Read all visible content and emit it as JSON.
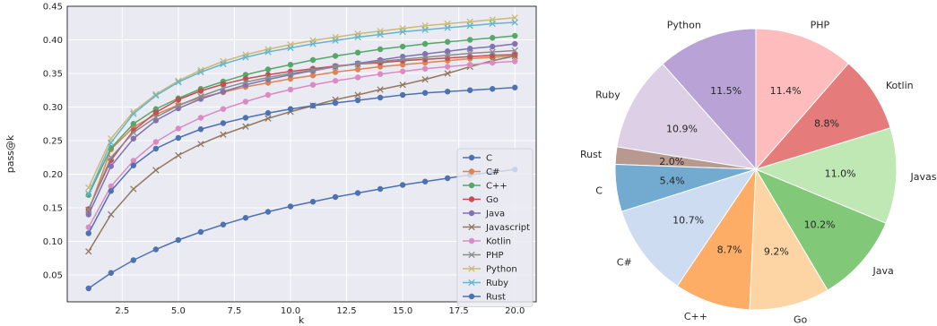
{
  "chart_data": [
    {
      "type": "line",
      "xlabel": "k",
      "ylabel": "pass@k",
      "xlim": [
        0.05,
        20.95
      ],
      "ylim": [
        0.01,
        0.45
      ],
      "xticks": [
        2.5,
        5.0,
        7.5,
        10.0,
        12.5,
        15.0,
        17.5,
        20.0
      ],
      "xtick_labels": [
        "2.5",
        "5.0",
        "7.5",
        "10.0",
        "12.5",
        "15.0",
        "17.5",
        "20.0"
      ],
      "yticks": [
        0.05,
        0.1,
        0.15,
        0.2,
        0.25,
        0.3,
        0.35,
        0.4,
        0.45
      ],
      "ytick_labels": [
        "0.05",
        "0.10",
        "0.15",
        "0.20",
        "0.25",
        "0.30",
        "0.35",
        "0.40",
        "0.45"
      ],
      "grid": true,
      "legend_position": "lower-right",
      "x": [
        1,
        2,
        3,
        4,
        5,
        6,
        7,
        8,
        9,
        10,
        11,
        12,
        13,
        14,
        15,
        16,
        17,
        18,
        19,
        20
      ],
      "series": [
        {
          "name": "C",
          "color": "#4c72b0",
          "marker": "circle",
          "values": [
            0.03,
            0.053,
            0.072,
            0.088,
            0.102,
            0.114,
            0.125,
            0.135,
            0.144,
            0.152,
            0.159,
            0.166,
            0.172,
            0.178,
            0.184,
            0.189,
            0.194,
            0.199,
            0.203,
            0.207
          ]
        },
        {
          "name": "C#",
          "color": "#dd8452",
          "marker": "circle",
          "values": [
            0.145,
            0.237,
            0.27,
            0.289,
            0.303,
            0.314,
            0.322,
            0.33,
            0.336,
            0.342,
            0.347,
            0.352,
            0.356,
            0.36,
            0.363,
            0.366,
            0.369,
            0.372,
            0.374,
            0.376
          ]
        },
        {
          "name": "C++",
          "color": "#55a868",
          "marker": "circle",
          "values": [
            0.169,
            0.239,
            0.275,
            0.297,
            0.313,
            0.327,
            0.338,
            0.348,
            0.356,
            0.363,
            0.37,
            0.376,
            0.381,
            0.386,
            0.39,
            0.394,
            0.397,
            0.4,
            0.403,
            0.406
          ]
        },
        {
          "name": "Go",
          "color": "#c44e52",
          "marker": "circle",
          "values": [
            0.148,
            0.221,
            0.265,
            0.292,
            0.311,
            0.324,
            0.334,
            0.342,
            0.348,
            0.353,
            0.357,
            0.361,
            0.364,
            0.366,
            0.369,
            0.371,
            0.373,
            0.375,
            0.377,
            0.378
          ]
        },
        {
          "name": "Java",
          "color": "#8172b3",
          "marker": "circle",
          "values": [
            0.14,
            0.212,
            0.253,
            0.28,
            0.298,
            0.312,
            0.323,
            0.333,
            0.341,
            0.348,
            0.354,
            0.36,
            0.365,
            0.37,
            0.375,
            0.379,
            0.383,
            0.387,
            0.39,
            0.394
          ]
        },
        {
          "name": "Javascript",
          "color": "#937860",
          "marker": "x",
          "values": [
            0.085,
            0.14,
            0.178,
            0.206,
            0.228,
            0.245,
            0.259,
            0.271,
            0.283,
            0.293,
            0.302,
            0.311,
            0.318,
            0.326,
            0.333,
            0.341,
            0.35,
            0.36,
            0.369,
            0.376
          ]
        },
        {
          "name": "Kotlin",
          "color": "#da8bc3",
          "marker": "circle",
          "values": [
            0.121,
            0.182,
            0.22,
            0.248,
            0.268,
            0.284,
            0.297,
            0.308,
            0.318,
            0.326,
            0.333,
            0.339,
            0.344,
            0.349,
            0.353,
            0.357,
            0.36,
            0.363,
            0.366,
            0.368
          ]
        },
        {
          "name": "PHP",
          "color": "#8c8c8c",
          "marker": "x",
          "values": [
            0.147,
            0.225,
            0.262,
            0.285,
            0.302,
            0.316,
            0.328,
            0.337,
            0.344,
            0.35,
            0.355,
            0.36,
            0.364,
            0.368,
            0.371,
            0.374,
            0.377,
            0.38,
            0.382,
            0.384
          ]
        },
        {
          "name": "Python",
          "color": "#ccb974",
          "marker": "x",
          "values": [
            0.18,
            0.253,
            0.293,
            0.319,
            0.339,
            0.355,
            0.368,
            0.378,
            0.386,
            0.393,
            0.399,
            0.404,
            0.409,
            0.413,
            0.417,
            0.421,
            0.424,
            0.427,
            0.43,
            0.433
          ]
        },
        {
          "name": "Ruby",
          "color": "#64b5cd",
          "marker": "x",
          "values": [
            0.171,
            0.247,
            0.29,
            0.317,
            0.337,
            0.352,
            0.364,
            0.374,
            0.382,
            0.388,
            0.394,
            0.399,
            0.404,
            0.408,
            0.412,
            0.415,
            0.418,
            0.421,
            0.424,
            0.426
          ]
        },
        {
          "name": "Rust",
          "color": "#4c72b0",
          "marker": "circle",
          "values": [
            0.112,
            0.175,
            0.213,
            0.238,
            0.254,
            0.267,
            0.276,
            0.284,
            0.291,
            0.297,
            0.302,
            0.306,
            0.31,
            0.314,
            0.318,
            0.321,
            0.323,
            0.325,
            0.327,
            0.329
          ]
        }
      ]
    },
    {
      "type": "pie",
      "start_angle": 90,
      "direction": "counterclockwise",
      "slices": [
        {
          "label": "Python",
          "value": 11.5,
          "pct_label": "11.5%",
          "color": "#b8a2d6"
        },
        {
          "label": "Ruby",
          "value": 10.9,
          "pct_label": "10.9%",
          "color": "#dccfe6"
        },
        {
          "label": "Rust",
          "value": 2.0,
          "pct_label": "2.0%",
          "color": "#b8998f"
        },
        {
          "label": "C",
          "value": 5.4,
          "pct_label": "5.4%",
          "color": "#72aad0"
        },
        {
          "label": "C#",
          "value": 10.7,
          "pct_label": "10.7%",
          "color": "#cddcf1"
        },
        {
          "label": "C++",
          "value": 8.7,
          "pct_label": "8.7%",
          "color": "#fdad66"
        },
        {
          "label": "Go",
          "value": 9.2,
          "pct_label": "9.2%",
          "color": "#fdd4a4"
        },
        {
          "label": "Java",
          "value": 10.2,
          "pct_label": "10.2%",
          "color": "#81c879"
        },
        {
          "label": "Javascript",
          "value": 11.0,
          "pct_label": "11.0%",
          "color": "#bfe8b5"
        },
        {
          "label": "Kotlin",
          "value": 8.8,
          "pct_label": "8.8%",
          "color": "#e67b7b"
        },
        {
          "label": "PHP",
          "value": 11.4,
          "pct_label": "11.4%",
          "color": "#febcbc"
        }
      ]
    }
  ]
}
